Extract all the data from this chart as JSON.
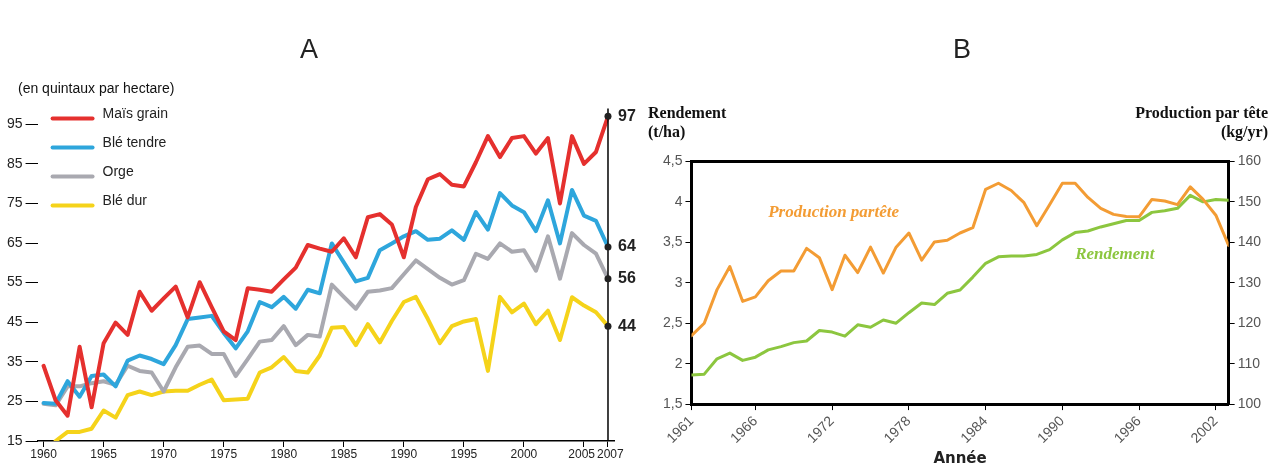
{
  "chart_data": [
    {
      "type": "line",
      "title": "A",
      "ylabel": "(en quintaux par hectare)",
      "legend": "top left",
      "grid": false,
      "marker": "none",
      "x": [
        1960,
        1961,
        1962,
        1963,
        1964,
        1965,
        1966,
        1967,
        1968,
        1969,
        1970,
        1971,
        1972,
        1973,
        1974,
        1975,
        1976,
        1977,
        1978,
        1979,
        1980,
        1981,
        1982,
        1983,
        1984,
        1985,
        1986,
        1987,
        1988,
        1989,
        1990,
        1991,
        1992,
        1993,
        1994,
        1995,
        1996,
        1997,
        1998,
        1999,
        2000,
        2001,
        2002,
        2003,
        2004,
        2005,
        2006,
        2007
      ],
      "xlim": [
        1959.5,
        2007.5
      ],
      "xticks": [
        1960,
        1965,
        1970,
        1975,
        1980,
        1985,
        1990,
        1995,
        2000,
        2005,
        2007
      ],
      "ylim": [
        15,
        99
      ],
      "yticks": [
        15,
        25,
        35,
        45,
        55,
        65,
        75,
        85,
        95
      ],
      "series": [
        {
          "name": "Maïs grain",
          "color": "#e5302e",
          "values": [
            34.0,
            25.3,
            21.4,
            38.8,
            23.5,
            39.7,
            44.9,
            41.8,
            52.7,
            47.9,
            51,
            54,
            46.2,
            55.1,
            48.8,
            42.7,
            40.5,
            53.6,
            53.2,
            52.7,
            55.8,
            58.8,
            64.5,
            63.6,
            62.8,
            66.2,
            61.4,
            71.5,
            72.3,
            69.7,
            61.4,
            74.1,
            81.1,
            82.4,
            79.7,
            79.3,
            85.4,
            92,
            86.7,
            91.5,
            92,
            87.6,
            91.5,
            75,
            92,
            85,
            88,
            97
          ],
          "value_labels": [
            null,
            null,
            null,
            null,
            null,
            null,
            null,
            null,
            null,
            null,
            null,
            null,
            null,
            null,
            null,
            null,
            null,
            null,
            null,
            null,
            null,
            null,
            null,
            null,
            null,
            null,
            null,
            null,
            null,
            null,
            null,
            null,
            null,
            null,
            null,
            null,
            null,
            null,
            null,
            null,
            null,
            null,
            null,
            null,
            null,
            null,
            null,
            "97"
          ]
        },
        {
          "name": "Blé tendre",
          "color": "#2ea6dc",
          "values": [
            24.6,
            24.4,
            30.1,
            26.2,
            31.4,
            31.8,
            28.8,
            35.3,
            36.6,
            35.7,
            34.4,
            39.2,
            45.8,
            46.2,
            46.6,
            42.3,
            38.4,
            42.7,
            50.1,
            48.8,
            51.4,
            48.4,
            53.2,
            52.3,
            64.9,
            60.1,
            55.3,
            56.2,
            63.2,
            64.9,
            66.7,
            68,
            65.8,
            66.1,
            68.2,
            65.8,
            72.8,
            68.4,
            77.6,
            74.5,
            72.8,
            68,
            75.8,
            64.9,
            78.4,
            71.9,
            70.6,
            64
          ],
          "value_labels": [
            null,
            null,
            null,
            null,
            null,
            null,
            null,
            null,
            null,
            null,
            null,
            null,
            null,
            null,
            null,
            null,
            null,
            null,
            null,
            null,
            null,
            null,
            null,
            null,
            null,
            null,
            null,
            null,
            null,
            null,
            null,
            null,
            null,
            null,
            null,
            null,
            null,
            null,
            null,
            null,
            null,
            null,
            null,
            null,
            null,
            null,
            null,
            "64"
          ]
        },
        {
          "name": "Orge",
          "color": "#a9a9b0",
          "values": [
            24.4,
            24,
            28.8,
            28.8,
            29.6,
            30.1,
            29.2,
            34,
            32.7,
            32.3,
            27.5,
            33.6,
            38.8,
            39.1,
            37,
            37,
            31.4,
            35.7,
            40.1,
            40.5,
            44,
            39.2,
            41.8,
            41.4,
            54.5,
            51.4,
            48.4,
            52.7,
            53,
            53.6,
            57.1,
            60.6,
            58.4,
            56.2,
            54.5,
            55.6,
            62.3,
            61,
            64.9,
            62.8,
            63.2,
            58,
            66.7,
            56,
            67.5,
            64.5,
            62.3,
            56
          ],
          "value_labels": [
            null,
            null,
            null,
            null,
            null,
            null,
            null,
            null,
            null,
            null,
            null,
            null,
            null,
            null,
            null,
            null,
            null,
            null,
            null,
            null,
            null,
            null,
            null,
            null,
            null,
            null,
            null,
            null,
            null,
            null,
            null,
            null,
            null,
            null,
            null,
            null,
            null,
            null,
            null,
            null,
            null,
            null,
            null,
            null,
            null,
            null,
            null,
            "56"
          ]
        },
        {
          "name": "Blé dur",
          "color": "#f5d31a",
          "values": [
            null,
            15,
            17.3,
            17.3,
            18.1,
            22.7,
            20.9,
            26.6,
            27.5,
            26.6,
            27.5,
            27.7,
            27.7,
            29.2,
            30.5,
            25.3,
            25.5,
            25.7,
            32.3,
            33.6,
            36.2,
            32.7,
            32.3,
            36.6,
            43.6,
            43.8,
            39.2,
            44.5,
            39.9,
            45.3,
            50.1,
            51.4,
            45.8,
            39.7,
            44,
            45.2,
            45.8,
            32.7,
            51.4,
            47.5,
            49.7,
            44.5,
            47.9,
            40.5,
            51.3,
            49.2,
            47.5,
            44
          ],
          "value_labels": [
            null,
            null,
            null,
            null,
            null,
            null,
            null,
            null,
            null,
            null,
            null,
            null,
            null,
            null,
            null,
            null,
            null,
            null,
            null,
            null,
            null,
            null,
            null,
            null,
            null,
            null,
            null,
            null,
            null,
            null,
            null,
            null,
            null,
            null,
            null,
            null,
            null,
            null,
            null,
            null,
            null,
            null,
            null,
            null,
            null,
            null,
            null,
            "44"
          ]
        }
      ],
      "ref_lines": [
        {
          "axis": "x",
          "value": 2007
        }
      ]
    },
    {
      "type": "line",
      "title": "B",
      "xlabel": "Année",
      "ylabel": "Rendement\n(t/ha)",
      "y2label": "Production par tête\n(kg/yr)",
      "legend": false,
      "grid": false,
      "marker": "none",
      "x": [
        1961,
        1962,
        1963,
        1964,
        1965,
        1966,
        1967,
        1968,
        1969,
        1970,
        1971,
        1972,
        1973,
        1974,
        1975,
        1976,
        1977,
        1978,
        1979,
        1980,
        1981,
        1982,
        1983,
        1984,
        1985,
        1986,
        1987,
        1988,
        1989,
        1990,
        1991,
        1992,
        1993,
        1994,
        1995,
        1996,
        1997,
        1998,
        1999,
        2000,
        2001,
        2002,
        2003
      ],
      "xlim": [
        1961,
        2003
      ],
      "xticks": [
        1961,
        1966,
        1972,
        1978,
        1984,
        1990,
        1996,
        2002
      ],
      "ylim": [
        1.5,
        4.5
      ],
      "yticks": [
        {
          "value": 1.5,
          "label": "1,5"
        },
        2,
        {
          "value": 2.5,
          "label": "2,5"
        },
        3,
        {
          "value": 3.5,
          "label": "3,5"
        },
        4,
        {
          "value": 4.5,
          "label": "4,5"
        }
      ],
      "y2lim": [
        100,
        160
      ],
      "y2ticks": [
        100,
        110,
        120,
        130,
        140,
        150,
        160
      ],
      "series": [
        {
          "name": "Production partête",
          "color": "#f39c34",
          "axis": "y2",
          "values": [
            116.9,
            120,
            128.3,
            134,
            125.4,
            126.5,
            130.5,
            132.9,
            132.9,
            138.5,
            136.2,
            128.3,
            136.8,
            132.5,
            138.8,
            132.4,
            138.8,
            142.3,
            135.6,
            140.1,
            140.5,
            142.3,
            143.6,
            153.1,
            154.6,
            152.8,
            149.8,
            144.1,
            149.3,
            154.6,
            154.6,
            151.1,
            148.4,
            146.9,
            146.4,
            146.3,
            150.6,
            150.2,
            149.3,
            153.7,
            150.6,
            146.7,
            139.2
          ]
        },
        {
          "name": "Rendement",
          "color": "#8cc63f",
          "values": [
            1.86,
            1.87,
            2.06,
            2.13,
            2.04,
            2.08,
            2.17,
            2.21,
            2.26,
            2.28,
            2.41,
            2.39,
            2.34,
            2.48,
            2.45,
            2.54,
            2.5,
            2.63,
            2.75,
            2.73,
            2.87,
            2.91,
            3.07,
            3.24,
            3.32,
            3.33,
            3.33,
            3.35,
            3.41,
            3.53,
            3.62,
            3.64,
            3.69,
            3.73,
            3.77,
            3.77,
            3.87,
            3.89,
            3.92,
            4.08,
            4.0,
            4.03,
            4.02
          ]
        }
      ]
    }
  ]
}
